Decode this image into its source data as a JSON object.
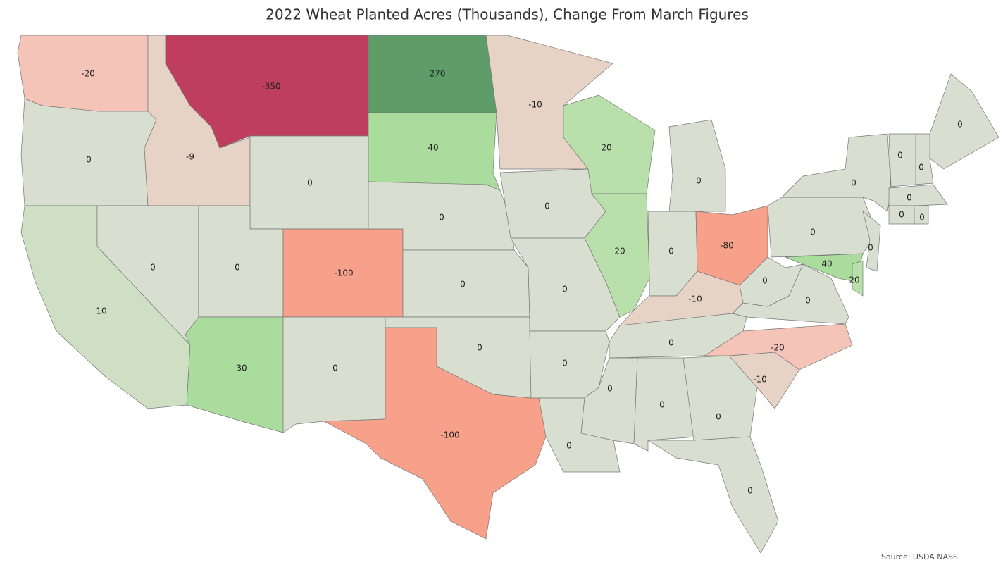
{
  "chart_data": {
    "type": "choropleth",
    "title": "2022 Wheat Planted Acres (Thousands), Change From March Figures",
    "source": "Source: USDA NASS",
    "values": [
      -20,
      0,
      10,
      -9,
      0,
      -350,
      0,
      0,
      30,
      -100,
      0,
      270,
      40,
      0,
      0,
      0,
      -100,
      -10,
      0,
      0,
      0,
      0,
      20,
      20,
      0,
      0,
      -80,
      -10,
      0,
      0,
      0,
      0,
      0,
      -10,
      -20,
      0,
      0,
      0,
      0,
      0,
      40,
      20,
      0,
      0,
      0,
      0,
      0,
      0
    ],
    "colors": [
      "#f4c4b8",
      "#d8ded0",
      "#cfdfc4",
      "#e6d3c6",
      "#d8ded0",
      "#bf3e5e",
      "#d8ded0",
      "#d8ded0",
      "#aadc9e",
      "#f7a08a",
      "#d8ded0",
      "#5e9c6a",
      "#aadc9e",
      "#d8ded0",
      "#d8ded0",
      "#d8ded0",
      "#f7a08a",
      "#e6d3c6",
      "#d8ded0",
      "#d8ded0",
      "#d8ded0",
      "#d8ded0",
      "#b9e0aa",
      "#b9e0aa",
      "#d8ded0",
      "#d8ded0",
      "#f7a08a",
      "#e6d3c6",
      "#d8ded0",
      "#d8ded0",
      "#d8ded0",
      "#d8ded0",
      "#d8ded0",
      "#e6d3c6",
      "#f4c4b8",
      "#d8ded0",
      "#d8ded0",
      "#d8ded0",
      "#d8ded0",
      "#d8ded0",
      "#aadc9e",
      "#b9e0aa",
      "#d8ded0",
      "#d8ded0",
      "#d8ded0",
      "#d8ded0",
      "#d8ded0",
      "#d8ded0"
    ]
  }
}
